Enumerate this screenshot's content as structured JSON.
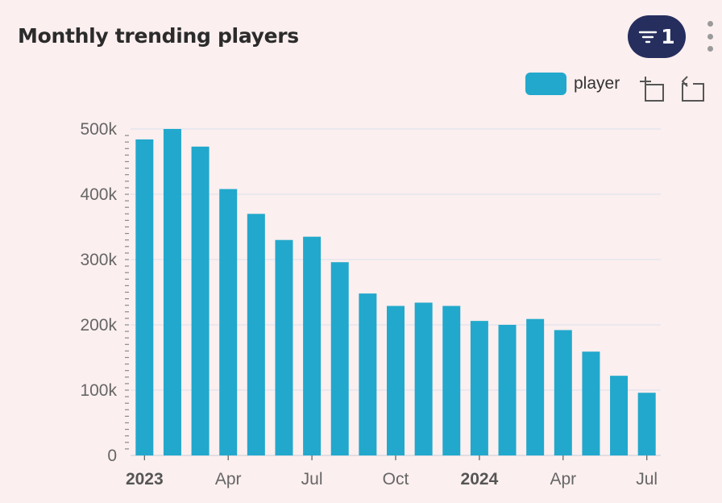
{
  "header": {
    "title": "Monthly trending players",
    "filter_count": "1"
  },
  "legend": {
    "label": "player"
  },
  "icons": {
    "filter": "filter-icon",
    "more": "more-vertical-icon",
    "zoom": "zoom-select-icon",
    "restore": "restore-icon"
  },
  "colors": {
    "bar": "#22a8cc",
    "filter_button": "#262e5e"
  },
  "chart_data": {
    "type": "bar",
    "title": "Monthly trending players",
    "series_name": "player",
    "categories": [
      "2023-01",
      "2023-02",
      "2023-03",
      "2023-04",
      "2023-05",
      "2023-06",
      "2023-07",
      "2023-08",
      "2023-09",
      "2023-10",
      "2023-11",
      "2023-12",
      "2024-01",
      "2024-02",
      "2024-03",
      "2024-04",
      "2024-05",
      "2024-06",
      "2024-07"
    ],
    "values": [
      484000,
      500000,
      473000,
      408000,
      370000,
      330000,
      335000,
      296000,
      248000,
      229000,
      234000,
      229000,
      206000,
      200000,
      209000,
      192000,
      159000,
      122000,
      96000
    ],
    "ylim": [
      0,
      500000
    ],
    "yticks": [
      0,
      100000,
      200000,
      300000,
      400000,
      500000
    ],
    "ytick_labels": [
      "0",
      "100k",
      "200k",
      "300k",
      "400k",
      "500k"
    ],
    "xtick_labels": [
      {
        "index": 0,
        "label": "2023",
        "bold": true
      },
      {
        "index": 3,
        "label": "Apr",
        "bold": false
      },
      {
        "index": 6,
        "label": "Jul",
        "bold": false
      },
      {
        "index": 9,
        "label": "Oct",
        "bold": false
      },
      {
        "index": 12,
        "label": "2024",
        "bold": true
      },
      {
        "index": 15,
        "label": "Apr",
        "bold": false
      },
      {
        "index": 18,
        "label": "Jul",
        "bold": false
      }
    ],
    "grid": true,
    "legend_position": "top-right"
  }
}
